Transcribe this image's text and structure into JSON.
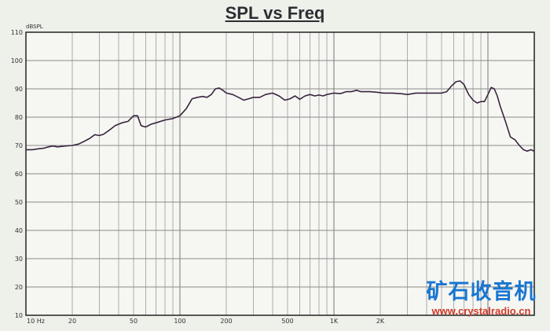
{
  "chart_data": {
    "type": "line",
    "title": "SPL vs Freq",
    "ylabel": "dBSPL",
    "xlabel": "",
    "xscale": "log",
    "xlim": [
      10,
      20000
    ],
    "ylim": [
      10,
      110
    ],
    "grid": true,
    "y_ticks": [
      10,
      20,
      30,
      40,
      50,
      60,
      70,
      80,
      90,
      100,
      110
    ],
    "x_ticks": [
      {
        "value": 10,
        "label": "10 Hz"
      },
      {
        "value": 20,
        "label": "20"
      },
      {
        "value": 50,
        "label": "50"
      },
      {
        "value": 100,
        "label": "100"
      },
      {
        "value": 200,
        "label": "200"
      },
      {
        "value": 500,
        "label": "500"
      },
      {
        "value": 1000,
        "label": "1K"
      },
      {
        "value": 2000,
        "label": "2K"
      }
    ],
    "series": [
      {
        "color": "#3a2440",
        "x": [
          10,
          11,
          12,
          13,
          14,
          15,
          16,
          18,
          20,
          22,
          24,
          26,
          28,
          30,
          32,
          35,
          38,
          42,
          46,
          50,
          53,
          56,
          60,
          65,
          70,
          80,
          90,
          100,
          110,
          120,
          130,
          140,
          150,
          160,
          170,
          180,
          190,
          200,
          220,
          240,
          260,
          280,
          300,
          330,
          360,
          400,
          440,
          480,
          520,
          560,
          600,
          650,
          700,
          750,
          800,
          850,
          900,
          1000,
          1100,
          1200,
          1300,
          1400,
          1500,
          1700,
          1900,
          2100,
          2400,
          2700,
          3000,
          3400,
          3800,
          4200,
          4600,
          5000,
          5400,
          5800,
          6200,
          6600,
          7000,
          7500,
          8000,
          8500,
          9000,
          9500,
          10000,
          10500,
          11000,
          11500,
          12000,
          13000,
          14000,
          15000,
          16000,
          17000,
          18000,
          19000,
          20000
        ],
        "y": [
          68.5,
          68.5,
          68.8,
          69,
          69.5,
          69.8,
          69.5,
          69.8,
          70,
          70.5,
          71.5,
          72.5,
          73.8,
          73.5,
          74,
          75.5,
          77,
          78,
          78.5,
          80.5,
          80.5,
          77,
          76.5,
          77.5,
          78,
          79,
          79.5,
          80.5,
          83,
          86.5,
          87,
          87.3,
          87,
          88,
          90,
          90.3,
          89.5,
          88.5,
          88,
          87,
          86,
          86.5,
          87,
          87,
          88,
          88.5,
          87.5,
          86,
          86.5,
          87.5,
          86.3,
          87.5,
          88,
          87.5,
          87.8,
          87.5,
          88,
          88.5,
          88.3,
          89,
          89,
          89.5,
          89,
          89,
          88.8,
          88.5,
          88.5,
          88.3,
          88,
          88.5,
          88.5,
          88.5,
          88.5,
          88.5,
          89,
          91,
          92.5,
          92.8,
          91.5,
          88,
          86,
          85,
          85.5,
          85.5,
          88,
          90.5,
          90,
          87.5,
          84,
          78.5,
          73,
          72,
          70,
          68.5,
          68,
          68.5,
          68
        ]
      }
    ]
  },
  "watermark": {
    "name_cn": "矿石收音机",
    "url": "www.crystalradio.cn"
  }
}
